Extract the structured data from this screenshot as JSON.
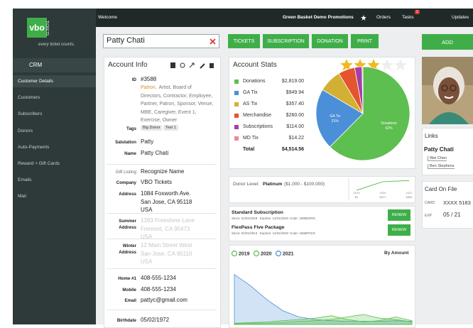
{
  "top_bar": {
    "welcome": "Welcome",
    "org": "Green Basket Demo Promotions",
    "orders": "Orders",
    "tasks": "Tasks",
    "tasks_badge": "2",
    "updates": "Updates"
  },
  "sidebar": {
    "logo": "vbo",
    "logo_sub": "TICKETS",
    "tagline": "every ticket counts.",
    "section": "CRM",
    "items": [
      "Customer Details",
      "Customers",
      "Subscribers",
      "Donors",
      "Auto-Payments",
      "Reward + Gift Cards",
      "Emails",
      "Mail"
    ]
  },
  "search": {
    "value": "Patty Chati"
  },
  "buttons": [
    "TICKETS",
    "SUBSCRIPTION",
    "DONATION",
    "PRINT"
  ],
  "add_button": "ADD",
  "account_info": {
    "title": "Account Info",
    "fields": [
      {
        "label": "ID",
        "lines": [
          "#3588"
        ]
      },
      {
        "highlight": "Patron,",
        "lines": [
          "Artist, Board of",
          "Directors, Contractor, Employee,",
          "Partner, Patron, Sponsor, Venue,",
          "MBE, Caregiver, Event 1,",
          "Exercise, Owner"
        ]
      },
      {
        "label": "Tags",
        "tags": [
          "Big Donor",
          "Test 1"
        ]
      },
      {
        "label": "Salutation",
        "lines": [
          "Patty"
        ]
      },
      {
        "label": "Name",
        "lines": [
          "Patty Chati"
        ]
      },
      {
        "label": "Gift Listing",
        "lines": [
          "Recognize Name"
        ]
      },
      {
        "label": "Company",
        "lines": [
          "VBO Tickets"
        ]
      },
      {
        "label": "Address",
        "lines": [
          "1084 Foxworth Ave.",
          "San Jose, CA 95118",
          "USA"
        ]
      },
      {
        "label": "Summer Address",
        "lines": [
          "1283 Freestone Lane",
          "Fremont, CA 95473",
          "USA"
        ],
        "faded": true
      },
      {
        "label": "Winter Address",
        "lines": [
          "12 Main Street West",
          "San Jose, CA 95110",
          "USA"
        ],
        "faded": true
      },
      {
        "label": "Home #1",
        "lines": [
          "408-555-1234"
        ]
      },
      {
        "label": "Mobile",
        "lines": [
          "408-555-1234"
        ]
      },
      {
        "label": "Email",
        "lines": [
          "pattyc@gmail.com"
        ]
      },
      {
        "label": "Birthdate",
        "lines": [
          "05/02/1972"
        ]
      }
    ]
  },
  "rating": 3,
  "rating_max": 5,
  "chart_data": [
    {
      "type": "pie",
      "title": "Account Stats",
      "categories": [
        "Donations",
        "GA Tix",
        "AS Tix",
        "Merchandise",
        "Subscriptions",
        "MD Tix"
      ],
      "values": [
        2819.0,
        949.94,
        357.4,
        260.0,
        114.0,
        14.22
      ],
      "value_labels": [
        "$2,819.00",
        "$949.94",
        "$357.40",
        "$260.00",
        "$114.00",
        "$14.22"
      ],
      "colors": [
        "#5cbf4f",
        "#4a8fd8",
        "#d2b033",
        "#e4552d",
        "#a53fa8",
        "#e98a9a"
      ],
      "pie_labels": [
        "62%",
        "21%"
      ],
      "total_label": "Total",
      "total": "$4,514.56"
    },
    {
      "type": "line",
      "title": "Donor Level:",
      "level": "Platinum",
      "range": "($1,000 - $100,000)",
      "x": [
        "2019",
        "2020",
        "2021"
      ],
      "values": [
        0,
        517,
        585
      ],
      "value_labels": [
        "$0",
        "$517",
        "$585"
      ],
      "ylim": [
        0,
        600
      ],
      "color": "#5cbf4f"
    },
    {
      "type": "area",
      "sort_label": "By Amount",
      "ylim": [
        0,
        100
      ],
      "series": [
        {
          "name": "2019",
          "color": "#5cbf4f",
          "values": [
            1,
            2,
            2,
            3,
            5,
            6,
            8,
            12,
            16,
            10,
            8,
            4
          ]
        },
        {
          "name": "2020",
          "color": "#5cbf4f",
          "values": [
            2,
            3,
            4,
            6,
            8,
            10,
            14,
            8,
            4,
            6,
            12,
            6
          ]
        },
        {
          "name": "2021",
          "color": "#4a8fd8",
          "values": [
            80,
            62,
            40,
            22,
            12,
            8,
            6,
            5,
            5,
            5,
            6,
            5
          ]
        }
      ]
    }
  ],
  "subscriptions": [
    {
      "name": "Standard Subscription",
      "since": "Since: 01/01/2018",
      "expires": "Expires: 12/31/2020",
      "code": "Code: 15986GRG",
      "button": "RENEW"
    },
    {
      "name": "FlexPass Five Package",
      "since": "Since: 01/01/2013",
      "expires": "Expires: 12/31/2020",
      "code": "Code: 15698TICK",
      "button": "RENEW"
    }
  ],
  "links": {
    "title": "Links",
    "name": "Patty Chati",
    "related": [
      "Wei Chen",
      "Ben Stephens"
    ]
  },
  "card": {
    "title": "Card On File",
    "card_label": "CARD",
    "card": "XXXX 5183",
    "exp_label": "EXP",
    "exp": "05 / 21"
  }
}
